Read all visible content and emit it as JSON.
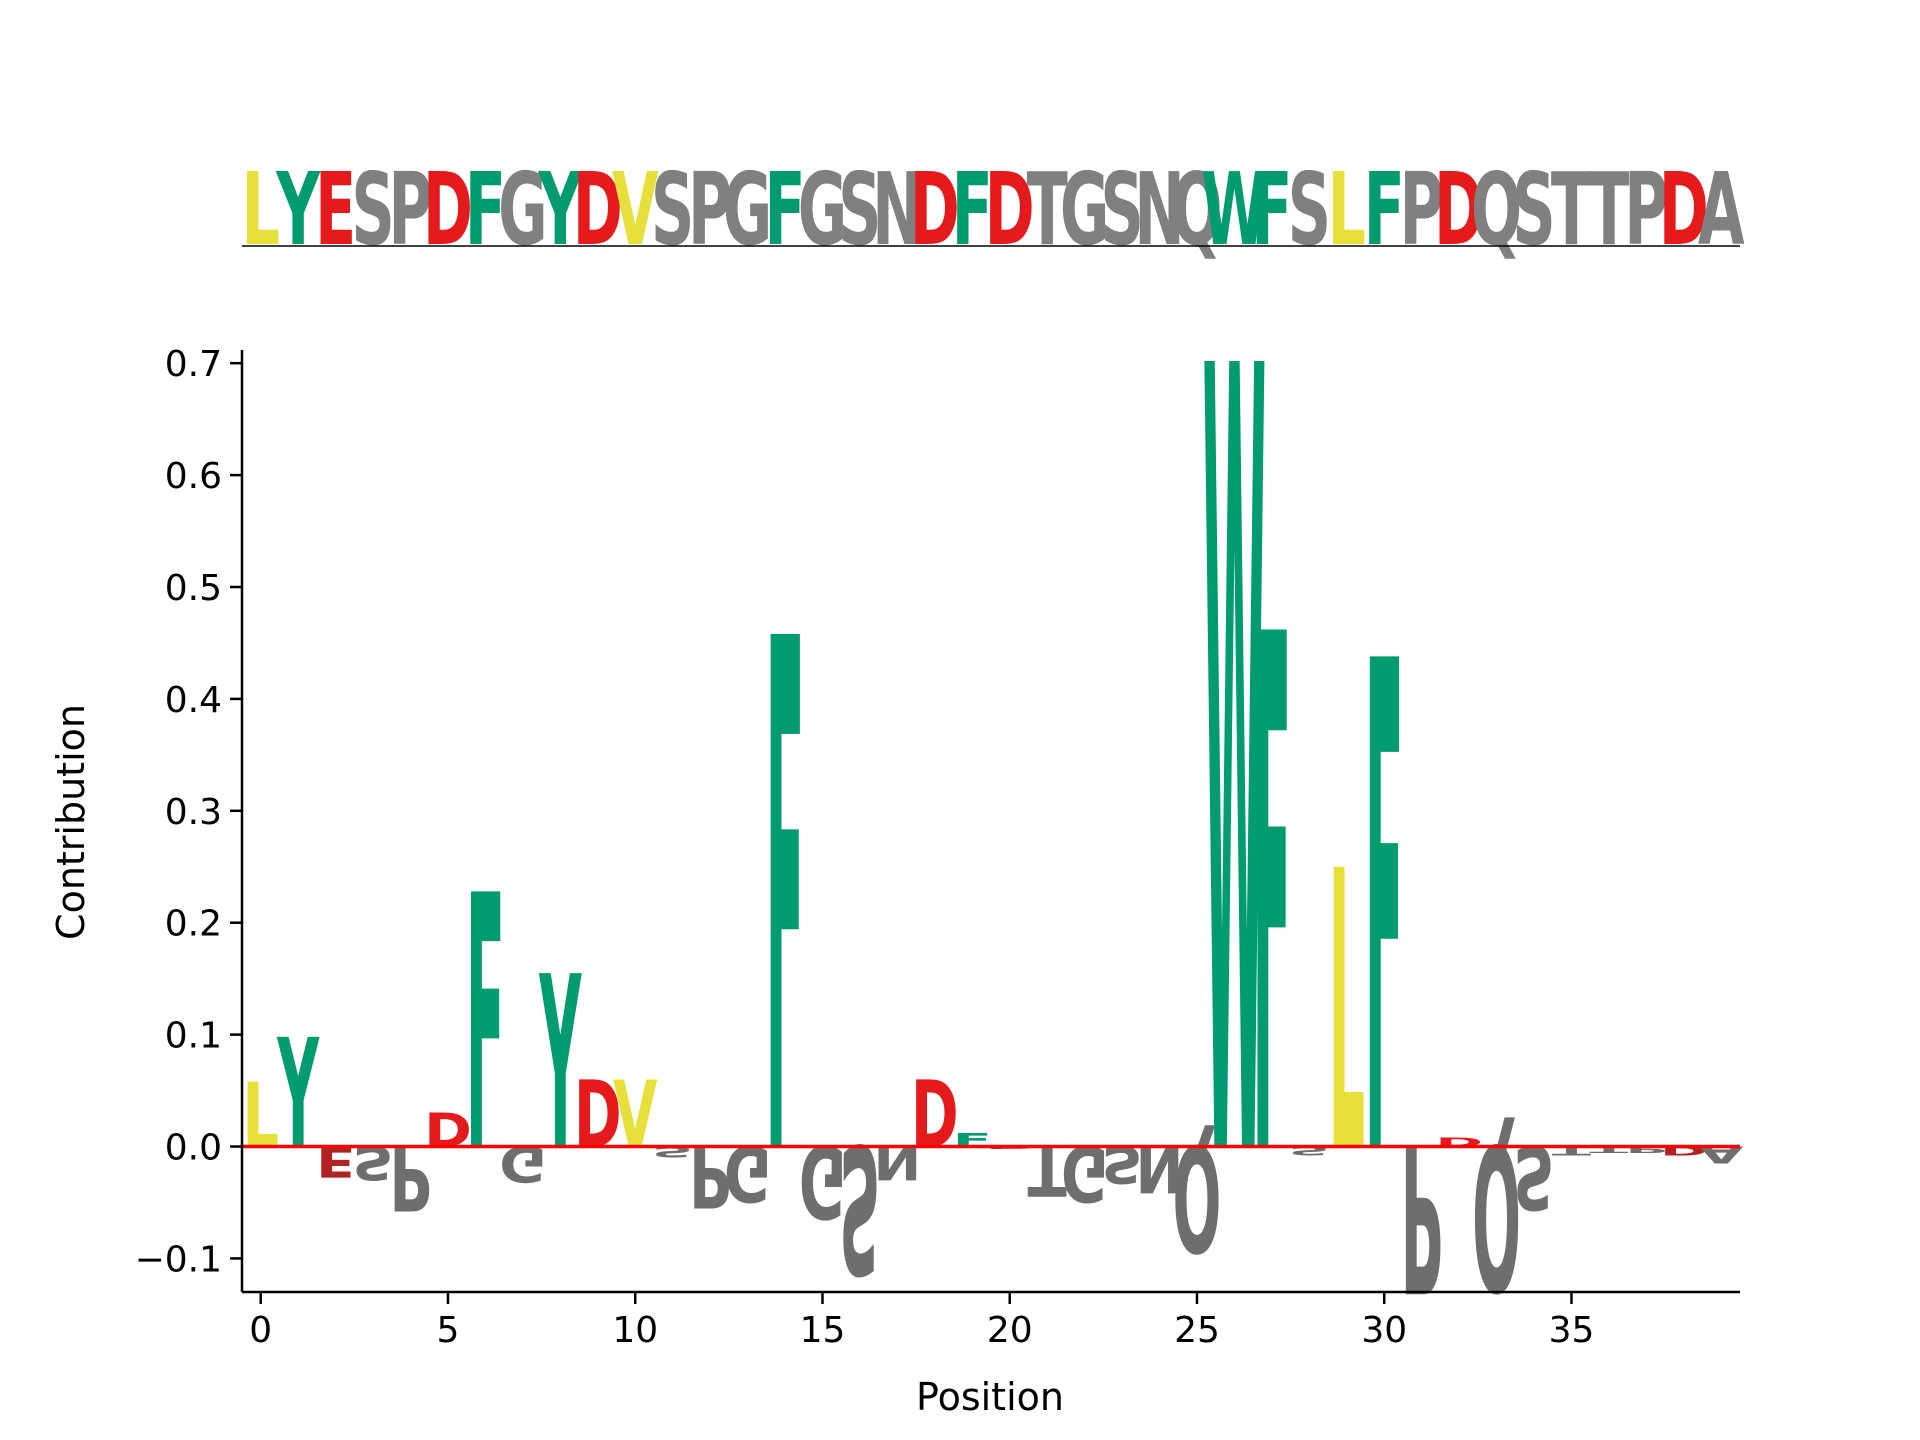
{
  "chart_data": {
    "type": "sequence-logo",
    "sequence": "LYESPDFGYDVSPGFGSNDFDTGSNQWFSLFPDQSTTPDA",
    "xlabel": "Position",
    "ylabel": "Contribution",
    "xlim": [
      -0.5,
      39.5
    ],
    "ylim": [
      -0.13,
      0.71
    ],
    "xticks": [
      0,
      5,
      10,
      15,
      20,
      25,
      30,
      35
    ],
    "yticks": [
      -0.1,
      0.0,
      0.1,
      0.2,
      0.3,
      0.4,
      0.5,
      0.6,
      0.7
    ],
    "ytick_labels": [
      "−0.1",
      "0.0",
      "0.1",
      "0.2",
      "0.3",
      "0.4",
      "0.5",
      "0.6",
      "0.7"
    ],
    "zero_line_color": "#ff0000",
    "grid": false,
    "contributions": [
      0.058,
      0.098,
      -0.028,
      -0.03,
      -0.058,
      0.03,
      0.228,
      -0.032,
      0.155,
      0.06,
      0.06,
      -0.01,
      -0.055,
      -0.05,
      0.458,
      -0.065,
      -0.115,
      -0.03,
      0.06,
      0.012,
      -0.002,
      -0.045,
      -0.05,
      -0.033,
      -0.042,
      -0.095,
      0.702,
      0.462,
      -0.008,
      0.25,
      0.438,
      -0.132,
      0.008,
      -0.13,
      -0.057,
      -0.008,
      -0.006,
      -0.006,
      -0.008,
      -0.015
    ],
    "colors": {
      "hydrophobic_yellow": "#e8e03a",
      "aromatic_green": "#009b6e",
      "acidic_red": "#e41a1c",
      "neutral_gray": "#808080",
      "negative_gray": "#6e6e6e",
      "negative_acidic_red": "#b22222"
    },
    "residue_colors": {
      "L": "#e8e03a",
      "V": "#e8e03a",
      "Y": "#009b6e",
      "F": "#009b6e",
      "W": "#009b6e",
      "D": "#e41a1c",
      "E": "#e41a1c",
      "S": "#808080",
      "P": "#808080",
      "G": "#808080",
      "N": "#808080",
      "T": "#808080",
      "Q": "#808080",
      "A": "#808080"
    }
  }
}
